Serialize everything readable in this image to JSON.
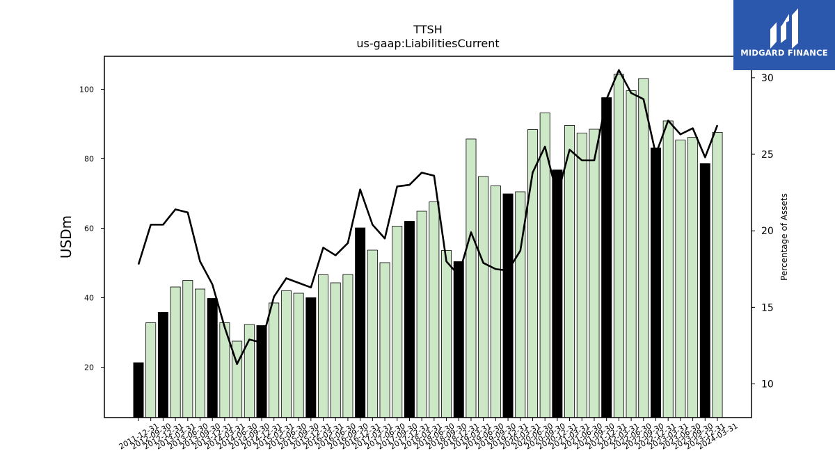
{
  "logo": {
    "text": "MIDGARD FINANCE"
  },
  "chart_data": {
    "type": "bar",
    "title": "TTSH",
    "subtitle": "us-gaap:LiabilitiesCurrent",
    "ylabel": "USDm",
    "y2label": "Percentage of Assets",
    "ylim": [
      5.5,
      109.5
    ],
    "y2lim": [
      7.8,
      31.4
    ],
    "yticks": [
      20,
      40,
      60,
      80,
      100
    ],
    "y2ticks": [
      10,
      15,
      20,
      25,
      30
    ],
    "categories": [
      "2011-12-31",
      "2012-09-30",
      "2012-12-31",
      "2013-03-31",
      "2013-06-30",
      "2013-09-30",
      "2013-12-31",
      "2014-03-31",
      "2014-06-30",
      "2014-09-30",
      "2014-12-31",
      "2015-03-31",
      "2015-06-30",
      "2015-09-30",
      "2015-12-31",
      "2016-03-31",
      "2016-06-30",
      "2016-09-30",
      "2016-12-31",
      "2017-03-31",
      "2017-06-30",
      "2017-09-30",
      "2017-12-31",
      "2018-03-31",
      "2018-06-30",
      "2018-09-30",
      "2018-12-31",
      "2019-03-31",
      "2019-06-30",
      "2019-09-30",
      "2019-12-31",
      "2020-03-31",
      "2020-06-30",
      "2020-09-30",
      "2020-12-31",
      "2021-03-31",
      "2021-06-30",
      "2021-09-30",
      "2021-12-31",
      "2022-03-31",
      "2022-06-30",
      "2022-09-30",
      "2022-12-31",
      "2023-03-31",
      "2023-06-30",
      "2023-09-30",
      "2023-12-31",
      "2024-03-31"
    ],
    "highlight_suffix": "12-31",
    "series": [
      {
        "type": "bar",
        "axis": "left",
        "values": [
          21.3,
          32.8,
          35.8,
          43.1,
          45.0,
          42.5,
          39.8,
          32.8,
          27.5,
          32.3,
          32.0,
          38.5,
          42.0,
          41.3,
          40.0,
          46.6,
          44.3,
          46.7,
          60.1,
          53.7,
          50.1,
          60.6,
          62.0,
          64.9,
          67.6,
          53.6,
          50.4,
          85.7,
          74.9,
          72.2,
          69.9,
          70.5,
          88.4,
          93.2,
          76.8,
          89.6,
          87.4,
          88.5,
          97.6,
          104.3,
          99.6,
          103.1,
          83.1,
          90.9,
          85.4,
          86.2,
          78.6,
          87.6
        ]
      },
      {
        "type": "line",
        "axis": "right",
        "values": [
          17.8,
          20.4,
          20.4,
          21.4,
          21.2,
          18.0,
          16.5,
          13.7,
          11.3,
          12.9,
          12.7,
          15.7,
          16.9,
          16.6,
          16.3,
          18.9,
          18.4,
          19.2,
          22.7,
          20.4,
          19.5,
          22.9,
          23.0,
          23.8,
          23.6,
          18.0,
          17.1,
          19.9,
          17.9,
          17.5,
          17.4,
          18.7,
          23.8,
          25.5,
          22.3,
          25.3,
          24.6,
          24.6,
          28.6,
          30.5,
          29.0,
          28.6,
          25.0,
          27.2,
          26.3,
          26.7,
          24.8,
          26.9
        ]
      }
    ]
  }
}
